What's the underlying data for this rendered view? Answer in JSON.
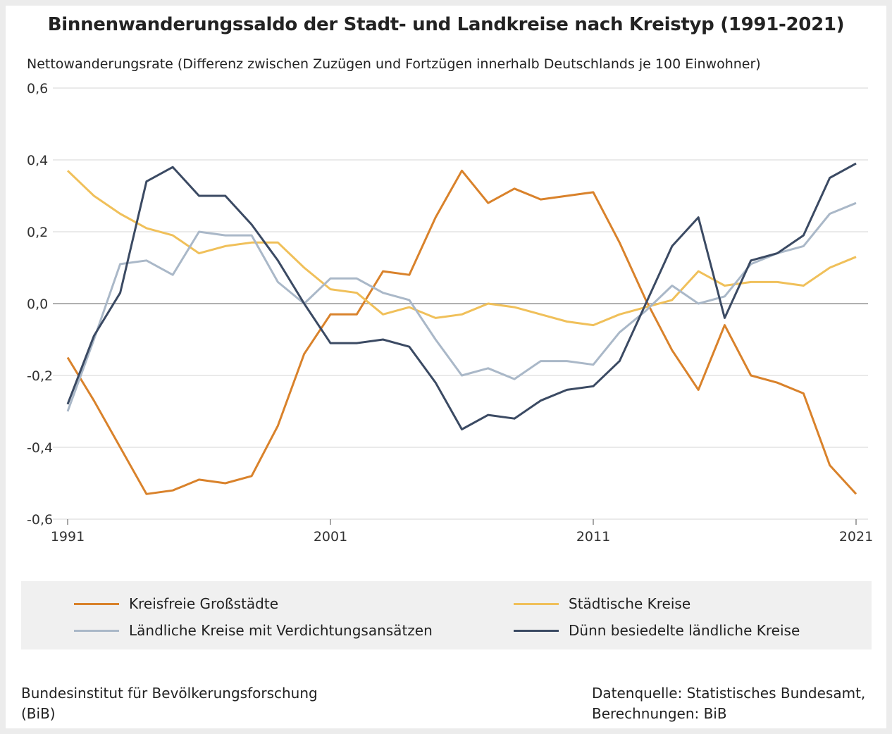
{
  "chart_data": {
    "type": "line",
    "title": "Binnenwanderungssaldo der Stadt- und Landkreise nach Kreistyp (1991-2021)",
    "ylabel": "Nettowanderungsrate (Differenz zwischen Zuzügen und Fortzügen innerhalb Deutschlands je 100 Einwohner)",
    "xlabel": "",
    "xlim": [
      1991,
      2021
    ],
    "ylim": [
      -0.6,
      0.6
    ],
    "x_ticks": [
      "1991",
      "2001",
      "2011",
      "2021"
    ],
    "x_tick_values": [
      1991,
      2001,
      2011,
      2021
    ],
    "y_ticks": [
      "0,6",
      "0,4",
      "0,2",
      "0,0",
      "-0,2",
      "-0,4",
      "-0,6"
    ],
    "y_tick_values": [
      0.6,
      0.4,
      0.2,
      0.0,
      -0.2,
      -0.4,
      -0.6
    ],
    "grid": "horizontal",
    "legend_placement": "bottom",
    "x": [
      1991,
      1992,
      1993,
      1994,
      1995,
      1996,
      1997,
      1998,
      1999,
      2000,
      2001,
      2002,
      2003,
      2004,
      2005,
      2006,
      2007,
      2008,
      2009,
      2010,
      2011,
      2012,
      2013,
      2014,
      2015,
      2016,
      2017,
      2018,
      2019,
      2020,
      2021
    ],
    "series": [
      {
        "name": "Kreisfreie Großstädte",
        "color": "#d9822b",
        "values": [
          -0.15,
          -0.27,
          -0.4,
          -0.53,
          -0.52,
          -0.49,
          -0.5,
          -0.48,
          -0.34,
          -0.14,
          -0.03,
          -0.03,
          0.09,
          0.08,
          0.24,
          0.37,
          0.28,
          0.32,
          0.29,
          0.3,
          0.31,
          0.17,
          0.01,
          -0.13,
          -0.24,
          -0.06,
          -0.2,
          -0.22,
          -0.25,
          -0.45,
          -0.53
        ]
      },
      {
        "name": "Städtische Kreise",
        "color": "#f0c05a",
        "values": [
          0.37,
          0.3,
          0.25,
          0.21,
          0.19,
          0.14,
          0.16,
          0.17,
          0.17,
          0.1,
          0.04,
          0.03,
          -0.03,
          -0.01,
          -0.04,
          -0.03,
          0.0,
          -0.01,
          -0.03,
          -0.05,
          -0.06,
          -0.03,
          -0.01,
          0.01,
          0.09,
          0.05,
          0.06,
          0.06,
          0.05,
          0.1,
          0.13
        ]
      },
      {
        "name": "Ländliche Kreise mit Verdichtungsansätzen",
        "color": "#aab8c8",
        "values": [
          -0.3,
          -0.1,
          0.11,
          0.12,
          0.08,
          0.2,
          0.19,
          0.19,
          0.06,
          0.0,
          0.07,
          0.07,
          0.03,
          0.01,
          -0.1,
          -0.2,
          -0.18,
          -0.21,
          -0.16,
          -0.16,
          -0.17,
          -0.08,
          -0.02,
          0.05,
          0.0,
          0.02,
          0.11,
          0.14,
          0.16,
          0.25,
          0.28
        ]
      },
      {
        "name": "Dünn besiedelte ländliche Kreise",
        "color": "#3b4a63",
        "values": [
          -0.28,
          -0.09,
          0.03,
          0.34,
          0.38,
          0.3,
          0.3,
          0.22,
          0.12,
          0.0,
          -0.11,
          -0.11,
          -0.1,
          -0.12,
          -0.22,
          -0.35,
          -0.31,
          -0.32,
          -0.27,
          -0.24,
          -0.23,
          -0.16,
          0.0,
          0.16,
          0.24,
          -0.04,
          0.12,
          0.14,
          0.19,
          0.35,
          0.39
        ]
      }
    ]
  },
  "footer": {
    "left_line1": "Bundesinstitut für Bevölkerungsforschung",
    "left_line2": "(BiB)",
    "right_line1": "Datenquelle: Statistisches Bundesamt,",
    "right_line2": "Berechnungen: BiB"
  }
}
